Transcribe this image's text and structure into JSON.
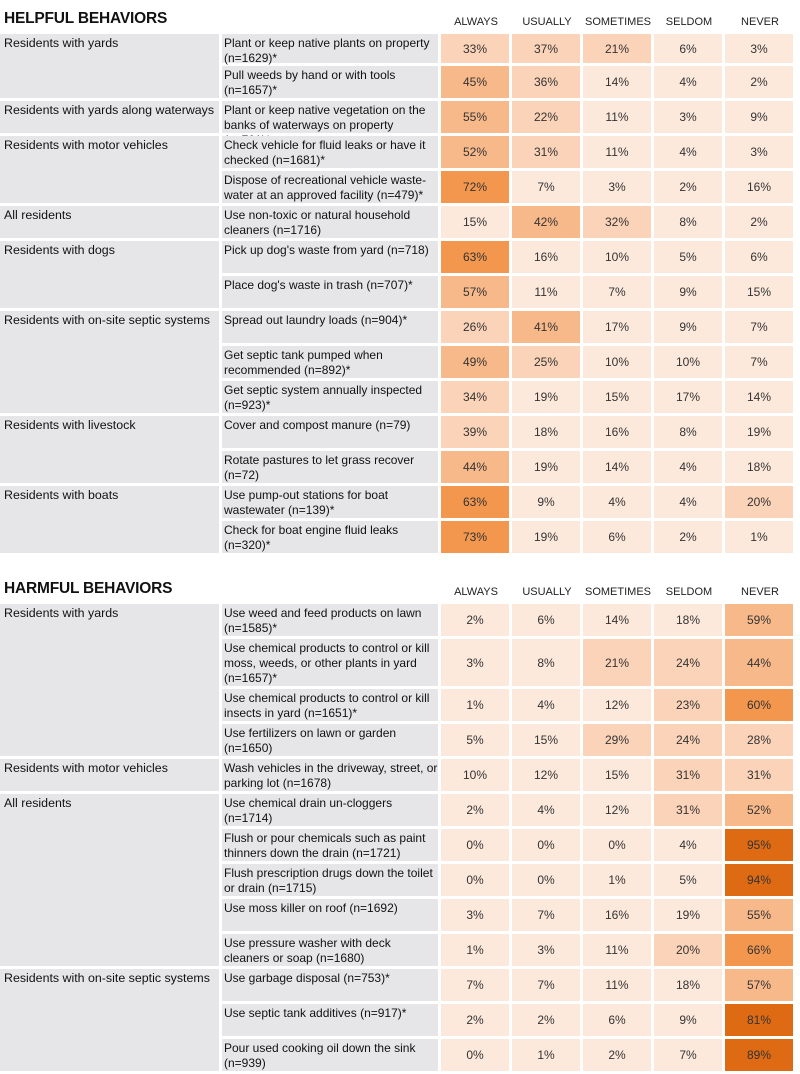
{
  "columns": [
    "ALWAYS",
    "USUALLY",
    "SOMETIMES",
    "SELDOM",
    "NEVER"
  ],
  "colors": [
    "#fde9dc",
    "#fbd3b8",
    "#f8b98a",
    "#f3974f",
    "#de6a13"
  ],
  "chart_data": [
    {
      "type": "table",
      "title": "HELPFUL BEHAVIORS",
      "columns": [
        "ALWAYS",
        "USUALLY",
        "SOMETIMES",
        "SELDOM",
        "NEVER"
      ],
      "groups": [
        {
          "group": "Residents with yards",
          "rows": [
            {
              "behavior": "Plant or keep native plants on property (n=1629)*",
              "values": [
                "33%",
                "37%",
                "21%",
                "6%",
                "3%"
              ]
            },
            {
              "behavior": "Pull weeds by hand or with tools (n=1657)*",
              "values": [
                "45%",
                "36%",
                "14%",
                "4%",
                "2%"
              ]
            }
          ]
        },
        {
          "group": "Residents with yards along waterways",
          "rows": [
            {
              "behavior": "Plant or keep native vegetation on the banks of waterways on property (n=701)*",
              "values": [
                "55%",
                "22%",
                "11%",
                "3%",
                "9%"
              ]
            }
          ]
        },
        {
          "group": "Residents with motor vehicles",
          "rows": [
            {
              "behavior": "Check vehicle for fluid leaks or have it checked (n=1681)*",
              "values": [
                "52%",
                "31%",
                "11%",
                "4%",
                "3%"
              ]
            },
            {
              "behavior": "Dispose of recreational vehicle waste-water at an approved facility (n=479)*",
              "values": [
                "72%",
                "7%",
                "3%",
                "2%",
                "16%"
              ]
            }
          ]
        },
        {
          "group": "All residents",
          "rows": [
            {
              "behavior": "Use non-toxic or natural household cleaners (n=1716)",
              "values": [
                "15%",
                "42%",
                "32%",
                "8%",
                "2%"
              ]
            }
          ]
        },
        {
          "group": "Residents with dogs",
          "rows": [
            {
              "behavior": "Pick up dog's waste from yard (n=718)",
              "values": [
                "63%",
                "16%",
                "10%",
                "5%",
                "6%"
              ]
            },
            {
              "behavior": "Place dog's waste in trash (n=707)*",
              "values": [
                "57%",
                "11%",
                "7%",
                "9%",
                "15%"
              ]
            }
          ]
        },
        {
          "group": "Residents with on-site septic systems",
          "rows": [
            {
              "behavior": "Spread out laundry loads (n=904)*",
              "values": [
                "26%",
                "41%",
                "17%",
                "9%",
                "7%"
              ]
            },
            {
              "behavior": "Get septic tank pumped when recommended (n=892)*",
              "values": [
                "49%",
                "25%",
                "10%",
                "10%",
                "7%"
              ]
            },
            {
              "behavior": "Get septic system annually inspected (n=923)*",
              "values": [
                "34%",
                "19%",
                "15%",
                "17%",
                "14%"
              ]
            }
          ]
        },
        {
          "group": "Residents with livestock",
          "rows": [
            {
              "behavior": "Cover and compost manure (n=79)",
              "values": [
                "39%",
                "18%",
                "16%",
                "8%",
                "19%"
              ]
            },
            {
              "behavior": "Rotate pastures to let grass recover (n=72)",
              "values": [
                "44%",
                "19%",
                "14%",
                "4%",
                "18%"
              ]
            }
          ]
        },
        {
          "group": "Residents with boats",
          "rows": [
            {
              "behavior": "Use pump-out stations for boat wastewater (n=139)*",
              "values": [
                "63%",
                "9%",
                "4%",
                "4%",
                "20%"
              ]
            },
            {
              "behavior": "Check for boat engine fluid leaks (n=320)*",
              "values": [
                "73%",
                "19%",
                "6%",
                "2%",
                "1%"
              ]
            }
          ]
        }
      ]
    },
    {
      "type": "table",
      "title": "HARMFUL BEHAVIORS",
      "columns": [
        "ALWAYS",
        "USUALLY",
        "SOMETIMES",
        "SELDOM",
        "NEVER"
      ],
      "groups": [
        {
          "group": "Residents with yards",
          "rows": [
            {
              "behavior": "Use weed and feed products on lawn (n=1585)*",
              "values": [
                "2%",
                "6%",
                "14%",
                "18%",
                "59%"
              ]
            },
            {
              "behavior": "Use chemical products to control or kill moss, weeds, or other plants in yard (n=1657)*",
              "values": [
                "3%",
                "8%",
                "21%",
                "24%",
                "44%"
              ]
            },
            {
              "behavior": "Use chemical products to control or kill insects in yard (n=1651)*",
              "values": [
                "1%",
                "4%",
                "12%",
                "23%",
                "60%"
              ]
            },
            {
              "behavior": "Use fertilizers on lawn or garden (n=1650)",
              "values": [
                "5%",
                "15%",
                "29%",
                "24%",
                "28%"
              ]
            }
          ]
        },
        {
          "group": "Residents with motor vehicles",
          "rows": [
            {
              "behavior": "Wash vehicles in the driveway, street, or parking lot (n=1678)",
              "values": [
                "10%",
                "12%",
                "15%",
                "31%",
                "31%"
              ]
            }
          ]
        },
        {
          "group": "All residents",
          "rows": [
            {
              "behavior": "Use chemical drain un-cloggers (n=1714)",
              "values": [
                "2%",
                "4%",
                "12%",
                "31%",
                "52%"
              ]
            },
            {
              "behavior": "Flush or pour chemicals such as paint thinners down the drain (n=1721)",
              "values": [
                "0%",
                "0%",
                "0%",
                "4%",
                "95%"
              ]
            },
            {
              "behavior": "Flush prescription drugs down the toilet or drain (n=1715)",
              "values": [
                "0%",
                "0%",
                "1%",
                "5%",
                "94%"
              ]
            },
            {
              "behavior": "Use moss killer on roof (n=1692)",
              "values": [
                "3%",
                "7%",
                "16%",
                "19%",
                "55%"
              ]
            },
            {
              "behavior": "Use pressure washer with deck cleaners or soap (n=1680)",
              "values": [
                "1%",
                "3%",
                "11%",
                "20%",
                "66%"
              ]
            }
          ]
        },
        {
          "group": "Residents with on-site septic systems",
          "rows": [
            {
              "behavior": "Use garbage disposal (n=753)*",
              "values": [
                "7%",
                "7%",
                "11%",
                "18%",
                "57%"
              ]
            },
            {
              "behavior": "Use septic tank additives (n=917)*",
              "values": [
                "2%",
                "2%",
                "6%",
                "9%",
                "81%"
              ]
            },
            {
              "behavior": "Pour used cooking oil down the sink (n=939)",
              "values": [
                "0%",
                "1%",
                "2%",
                "7%",
                "89%"
              ]
            }
          ]
        }
      ]
    }
  ]
}
